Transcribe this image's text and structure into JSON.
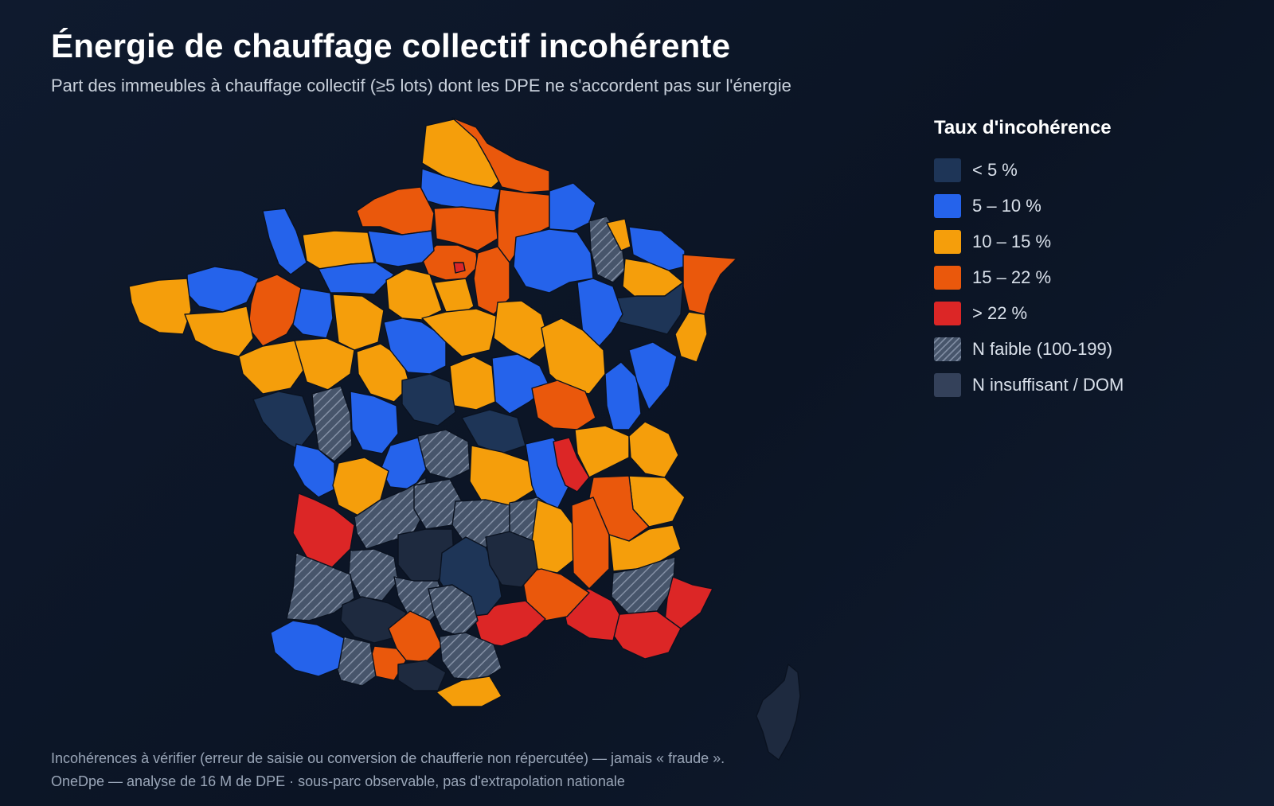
{
  "title": "Énergie de chauffage collectif incohérente",
  "subtitle": "Part des immeubles à chauffage collectif (≥5 lots) dont les DPE ne s'accordent pas sur l'énergie",
  "legend": {
    "title": "Taux d'incohérence",
    "items": [
      {
        "label": "< 5 %",
        "color": "#1e3557"
      },
      {
        "label": "5 – 10 %",
        "color": "#2563eb"
      },
      {
        "label": "10 – 15 %",
        "color": "#f59e0b"
      },
      {
        "label": "15 – 22 %",
        "color": "#ea580c"
      },
      {
        "label": "> 22 %",
        "color": "#dc2626"
      },
      {
        "label": "N faible (100-199)",
        "color": "#47556b",
        "pattern": "hatch"
      },
      {
        "label": "N insuffisant / DOM",
        "color": "#34415a"
      }
    ]
  },
  "footnotes": [
    "Incohérences à vérifier (erreur de saisie ou conversion de chaufferie non répercutée) — jamais « fraude ».",
    "OneDpe — analyse de 16 M de DPE · sous-parc observable, pas d'extrapolation nationale"
  ]
}
